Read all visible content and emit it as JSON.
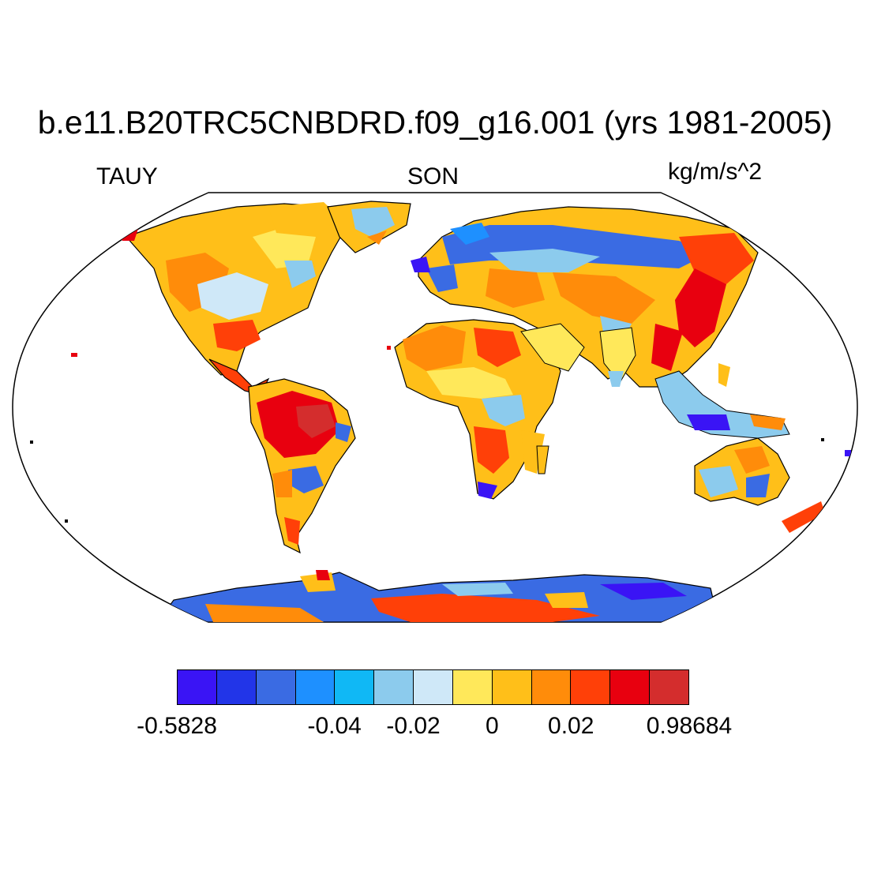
{
  "header": {
    "title": "b.e11.B20TRC5CNBDRD.f09_g16.001 (yrs 1981-2005)",
    "variable": "TAUY",
    "season": "SON",
    "units": "kg/m/s^2"
  },
  "colorbar": {
    "colors": [
      "#3a14f5",
      "#2235e8",
      "#3a6be3",
      "#1e90ff",
      "#10b8f5",
      "#8ccbed",
      "#cfe8f8",
      "#ffe85a",
      "#ffbf19",
      "#ff8c0a",
      "#ff4008",
      "#e8000f",
      "#d42d2d"
    ],
    "tick_labels": [
      "-0.5828",
      "-0.04",
      "-0.02",
      "0",
      "0.02",
      "0.98684"
    ],
    "tick_boundary_index": [
      0,
      4,
      6,
      8,
      10,
      13
    ]
  },
  "map": {
    "projection": "Robinson"
  }
}
